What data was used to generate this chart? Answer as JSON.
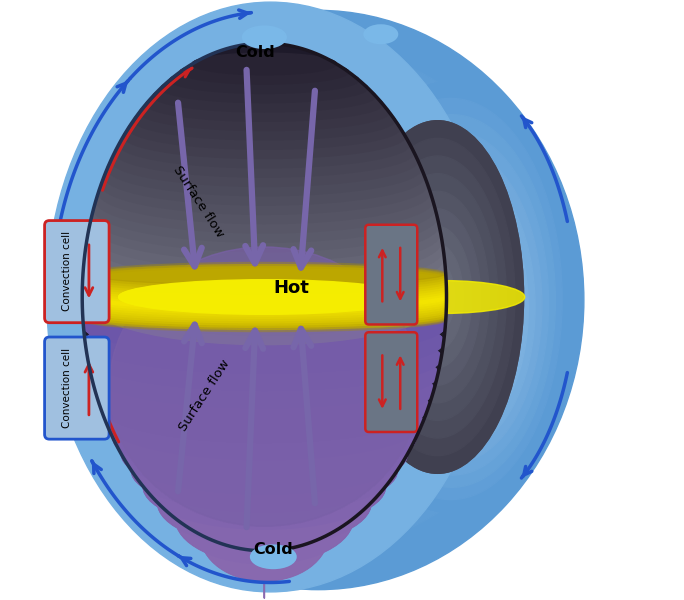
{
  "fig_width": 6.84,
  "fig_height": 6.0,
  "dpi": 100,
  "bg_color": "#ffffff",
  "blue_light": "#8ec4e8",
  "blue_mid": "#5b9bd5",
  "blue_dark": "#3a70b0",
  "blue_rim": "#4477bb",
  "purple_arrow": "#7766aa",
  "blue_arrow": "#2255cc",
  "red_arrow": "#cc2222",
  "yellow_hot": "#f5e800",
  "yellow_fade": "#c8b000",
  "interior_dark": "#2a2535",
  "interior_mid": "#5a4a70",
  "interior_gray": "#6a7080",
  "purple_top": "#7060a0",
  "gray_bottom": "#505060",
  "labels": {
    "cold_top": "Cold",
    "cold_bottom": "Cold",
    "hot": "Hot",
    "surface_flow": "Surface flow",
    "conv_cell": "Convection cell"
  }
}
